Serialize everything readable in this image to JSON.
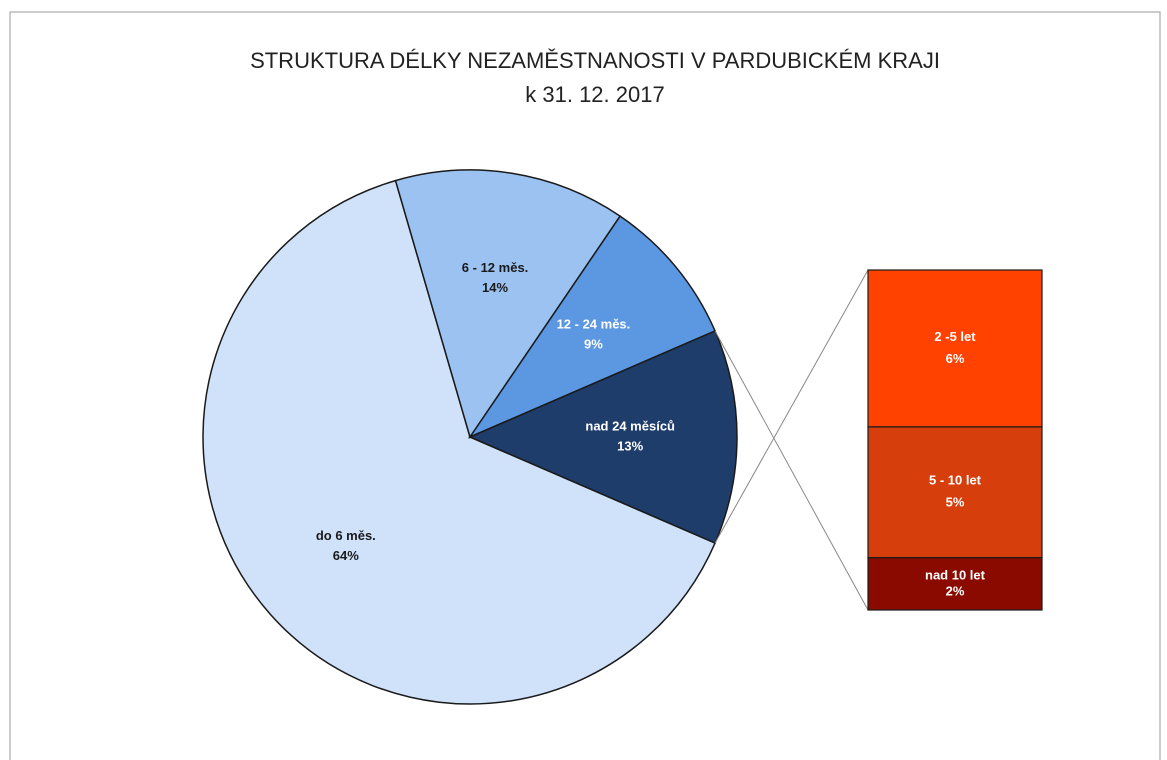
{
  "chart_data": {
    "type": "pie",
    "title": "STRUKTURA DÉLKY NEZAMĚSTNANOSTI V PARDUBICKÉM KRAJI",
    "subtitle": "k 31. 12. 2017",
    "categories": [
      "do 6 měs.",
      "6 - 12 měs.",
      "12 - 24 měs.",
      "nad 24 měsíců"
    ],
    "values": [
      64,
      14,
      9,
      13
    ],
    "value_labels": [
      "64%",
      "14%",
      "9%",
      "13%"
    ],
    "colors": [
      "#cfe2fa",
      "#9cc2f1",
      "#5c97e1",
      "#1f3d6b"
    ],
    "breakdown": {
      "categories": [
        "2 -5 let",
        "5 - 10 let",
        "nad 10 let"
      ],
      "values": [
        6,
        5,
        2
      ],
      "value_labels": [
        "6%",
        "5%",
        "2%"
      ],
      "colors": [
        "#ff4200",
        "#d63f0c",
        "#8a0a00"
      ]
    }
  }
}
